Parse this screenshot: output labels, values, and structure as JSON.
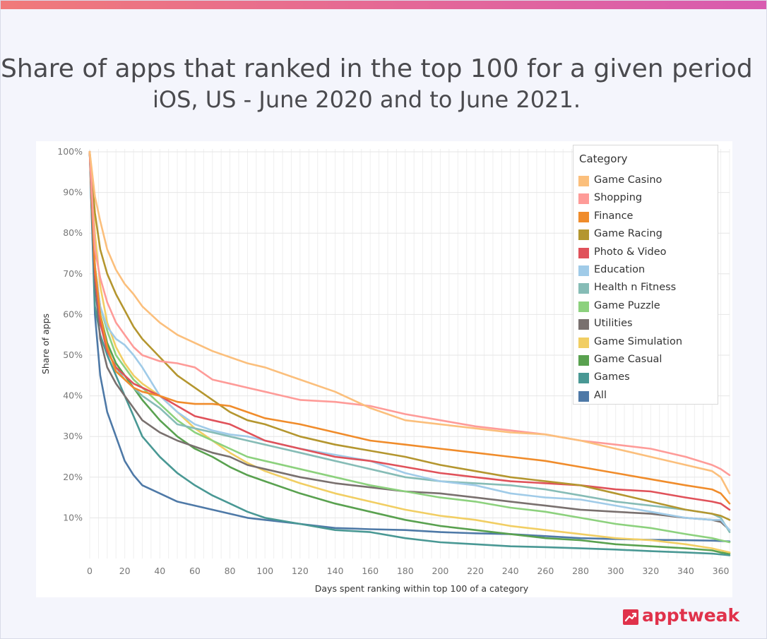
{
  "header": {
    "title_line1": "Share of apps that ranked in the top 100 for a given period",
    "title_line2": "iOS, US -  June 2020 and to June 2021."
  },
  "brand": {
    "logo_text": "apptweak",
    "logo_icon": "chart-trend-icon",
    "color": "#e0324b"
  },
  "legend": {
    "title": "Category",
    "placement": "top-right"
  },
  "chart_data": {
    "type": "line",
    "title": "",
    "xlabel": "Days spent ranking within top 100 of a category",
    "ylabel": "Share of apps",
    "xlim": [
      0,
      365
    ],
    "ylim": [
      0,
      100
    ],
    "x_ticks": [
      0,
      20,
      40,
      60,
      80,
      100,
      120,
      140,
      160,
      180,
      200,
      220,
      240,
      260,
      280,
      300,
      320,
      340,
      360
    ],
    "y_ticks": [
      10,
      20,
      30,
      40,
      50,
      60,
      70,
      80,
      90,
      100
    ],
    "y_tick_labels": [
      "10%",
      "20%",
      "30%",
      "40%",
      "50%",
      "60%",
      "70%",
      "80%",
      "90%",
      "100%"
    ],
    "grid": true,
    "x": [
      0,
      3,
      6,
      10,
      15,
      20,
      25,
      30,
      40,
      50,
      60,
      70,
      80,
      90,
      100,
      120,
      140,
      160,
      180,
      200,
      220,
      240,
      260,
      280,
      300,
      320,
      340,
      355,
      360,
      365
    ],
    "series": [
      {
        "name": "Game Casino",
        "color": "#fbbf7c",
        "values": [
          100,
          89,
          83,
          76,
          71,
          67.5,
          65,
          62,
          58,
          55,
          53,
          51,
          49.5,
          48,
          47,
          44,
          41,
          37,
          34,
          33,
          32,
          31,
          30.5,
          29,
          27,
          25,
          23,
          21.5,
          20,
          16
        ]
      },
      {
        "name": "Shopping",
        "color": "#fe9b98",
        "values": [
          100,
          76,
          69,
          63,
          58,
          55,
          52,
          50,
          48.5,
          48,
          47,
          44,
          43,
          42,
          41,
          39,
          38.5,
          37.5,
          35.5,
          34,
          32.5,
          31.5,
          30.5,
          29,
          28,
          27,
          25,
          23,
          22,
          20.5
        ]
      },
      {
        "name": "Finance",
        "color": "#f08c2b",
        "values": [
          100,
          72,
          60,
          52,
          46,
          44,
          42,
          41,
          40,
          38.5,
          38,
          38,
          37.5,
          36,
          34.5,
          33,
          31,
          29,
          28,
          27,
          26,
          25,
          24,
          22.5,
          21,
          19.5,
          18,
          17,
          16,
          13.5
        ]
      },
      {
        "name": "Game Racing",
        "color": "#b4962f",
        "values": [
          100,
          85,
          76,
          70,
          65,
          61,
          57,
          54,
          49.5,
          45,
          42,
          39,
          36,
          34,
          33,
          30,
          28,
          26.5,
          25,
          23,
          21.5,
          20,
          19,
          18,
          16,
          14,
          12,
          11,
          10.5,
          9.5
        ]
      },
      {
        "name": "Photo & Video",
        "color": "#e0525a",
        "values": [
          100,
          70,
          58,
          51,
          47,
          45,
          43,
          42,
          40,
          37.5,
          35,
          34,
          33,
          31,
          29,
          27,
          25,
          24,
          22.5,
          21,
          20,
          19,
          18.5,
          18,
          17,
          16.5,
          15,
          14,
          13.5,
          12
        ]
      },
      {
        "name": "Education",
        "color": "#a0cbe8",
        "values": [
          100,
          72,
          62,
          57,
          54,
          52.5,
          50,
          47,
          40,
          36,
          33,
          31.5,
          30.5,
          30,
          29,
          27,
          25.5,
          24,
          21,
          19,
          18,
          16,
          15,
          14.5,
          13,
          11.5,
          10,
          9.5,
          9.5,
          7
        ]
      },
      {
        "name": "Health n Fitness",
        "color": "#86bcb6",
        "values": [
          100,
          70,
          58,
          51,
          47,
          44,
          42,
          40,
          37,
          33,
          32,
          31,
          30,
          29,
          28,
          26,
          24,
          22,
          20,
          19,
          18.5,
          18,
          17,
          15.5,
          14,
          13,
          12,
          11,
          10,
          6.5
        ]
      },
      {
        "name": "Game Puzzle",
        "color": "#8cd17d",
        "values": [
          100,
          72,
          62,
          56,
          50,
          47,
          44,
          42,
          38,
          34,
          31,
          29,
          27,
          25,
          24,
          22,
          20,
          18,
          16.5,
          15,
          14,
          12.5,
          11.5,
          10,
          8.5,
          7.5,
          6,
          5,
          4.5,
          4
        ]
      },
      {
        "name": "Utilities",
        "color": "#79706e",
        "values": [
          100,
          68,
          54,
          47,
          43,
          40,
          37,
          34,
          31,
          29,
          27.5,
          26,
          25,
          23,
          22,
          20,
          18.5,
          17.5,
          16.5,
          16,
          15,
          14,
          13,
          12,
          11.5,
          11,
          10,
          9.5,
          9,
          7
        ]
      },
      {
        "name": "Game Simulation",
        "color": "#f1ce63",
        "values": [
          100,
          80,
          67,
          58,
          52,
          48,
          45,
          43,
          40,
          36,
          32,
          29,
          26,
          23.5,
          21.5,
          18.5,
          16,
          14,
          12,
          10.5,
          9.5,
          8,
          7,
          6,
          5,
          4.5,
          3.5,
          2.5,
          2,
          1.5
        ]
      },
      {
        "name": "Game Casual",
        "color": "#59a14f",
        "values": [
          100,
          72,
          60,
          53,
          48,
          45,
          42,
          39,
          34,
          30,
          27,
          25,
          22.5,
          20.5,
          19,
          16,
          13.5,
          11.5,
          9.5,
          8,
          7,
          6,
          5,
          4.5,
          3.5,
          3,
          2.5,
          2,
          1.5,
          1.2
        ]
      },
      {
        "name": "Games",
        "color": "#499894",
        "values": [
          100,
          62,
          55,
          50,
          45,
          40,
          35,
          30,
          25,
          21,
          18,
          15.5,
          13.5,
          11.5,
          10,
          8.5,
          7,
          6.5,
          5,
          4,
          3.5,
          3,
          2.8,
          2.5,
          2.2,
          1.8,
          1.5,
          1.2,
          1,
          0.8
        ]
      },
      {
        "name": "All",
        "color": "#4e79a7",
        "values": [
          100,
          60,
          45,
          36,
          30,
          24,
          20.5,
          18,
          16,
          14,
          13,
          12,
          11,
          10,
          9.5,
          8.5,
          7.5,
          7.2,
          7,
          6.5,
          6.2,
          6,
          5.5,
          5,
          4.8,
          4.6,
          4.5,
          4.4,
          4.3,
          4.2
        ]
      }
    ]
  }
}
